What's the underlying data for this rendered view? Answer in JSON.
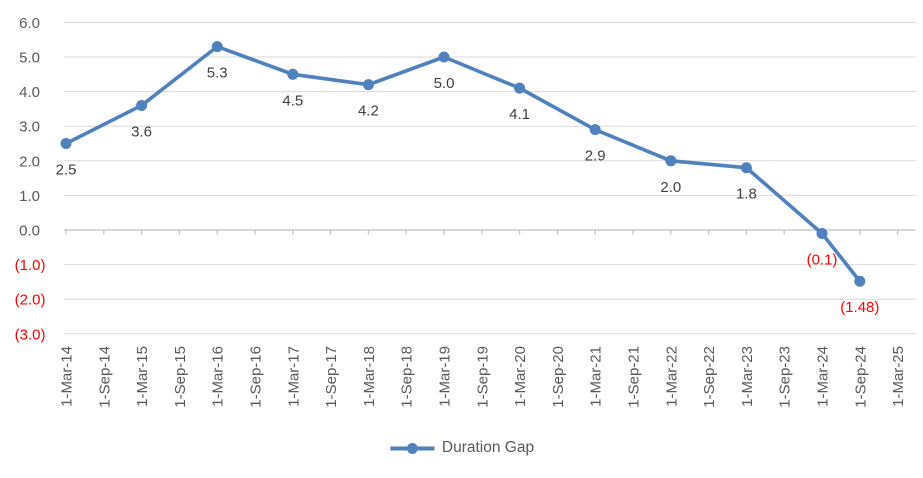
{
  "chart_data": {
    "type": "line",
    "title": "",
    "series_name": "Duration Gap",
    "categories": [
      "1-Mar-14",
      "1-Sep-14",
      "1-Mar-15",
      "1-Sep-15",
      "1-Mar-16",
      "1-Sep-16",
      "1-Mar-17",
      "1-Sep-17",
      "1-Mar-18",
      "1-Sep-18",
      "1-Mar-19",
      "1-Sep-19",
      "1-Mar-20",
      "1-Sep-20",
      "1-Mar-21",
      "1-Sep-21",
      "1-Mar-22",
      "1-Sep-22",
      "1-Mar-23",
      "1-Sep-23",
      "1-Mar-24",
      "1-Sep-24",
      "1-Mar-25"
    ],
    "points": [
      {
        "category": "1-Mar-14",
        "value": 2.5,
        "label": "2.5"
      },
      {
        "category": "1-Mar-15",
        "value": 3.6,
        "label": "3.6"
      },
      {
        "category": "1-Mar-16",
        "value": 5.3,
        "label": "5.3"
      },
      {
        "category": "1-Mar-17",
        "value": 4.5,
        "label": "4.5"
      },
      {
        "category": "1-Mar-18",
        "value": 4.2,
        "label": "4.2"
      },
      {
        "category": "1-Mar-19",
        "value": 5.0,
        "label": "5.0"
      },
      {
        "category": "1-Mar-20",
        "value": 4.1,
        "label": "4.1"
      },
      {
        "category": "1-Mar-21",
        "value": 2.9,
        "label": "2.9"
      },
      {
        "category": "1-Mar-22",
        "value": 2.0,
        "label": "2.0"
      },
      {
        "category": "1-Mar-23",
        "value": 1.8,
        "label": "1.8"
      },
      {
        "category": "1-Mar-24",
        "value": -0.1,
        "label": "(0.1)"
      },
      {
        "category": "1-Sep-24",
        "value": -1.48,
        "label": "(1.48)"
      }
    ],
    "y_axis": {
      "min": -3,
      "max": 6,
      "step": 1,
      "tick_labels": [
        "6.0",
        "5.0",
        "4.0",
        "3.0",
        "2.0",
        "1.0",
        "0.0",
        "(1.0)",
        "(2.0)",
        "(3.0)"
      ],
      "negative_format": "parentheses_red"
    },
    "legend": {
      "position": "bottom",
      "entries": [
        "Duration Gap"
      ]
    },
    "grid": true
  },
  "colors": {
    "line": "#4F81BD",
    "gridline": "#D9D9D9",
    "axis": "#C0C0C0",
    "tick_text": "#595959",
    "data_label": "#404040",
    "negative": "#FF0000",
    "background": "#FFFFFF"
  }
}
